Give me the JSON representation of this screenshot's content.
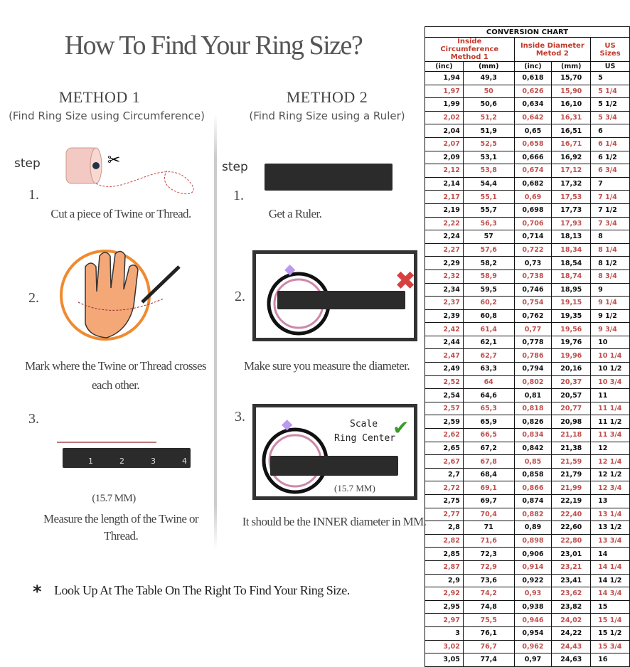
{
  "title": "How To Find Your Ring Size?",
  "method1": {
    "heading": "METHOD 1",
    "subheading": "(Find Ring Size using Circumference)",
    "step_label": "step",
    "steps": [
      {
        "num": "1.",
        "text": "Cut a piece of  Twine or Thread."
      },
      {
        "num": "2.",
        "text": "Mark where the Twine or Thread crosses each other."
      },
      {
        "num": "3.",
        "text": "Measure the length of the Twine or Thread."
      }
    ],
    "measure": "(15.7 MM)"
  },
  "method2": {
    "heading": "METHOD 2",
    "subheading": "(Find Ring Size using a Ruler)",
    "step_label": "step",
    "steps": [
      {
        "num": "1.",
        "text": "Get a Ruler."
      },
      {
        "num": "2.",
        "text": "Make sure you measure the diameter."
      },
      {
        "num": "3.",
        "text": "It should be the INNER diameter in MM."
      }
    ],
    "scale_label": "Scale",
    "center_label": "Ring Center",
    "measure": "(15.7 MM)"
  },
  "ruler_ticks": [
    "1",
    "2",
    "3",
    "4"
  ],
  "footnote": {
    "star": "*",
    "text": "Look Up At The Table On The Right To Find Your Ring Size."
  },
  "chart_data": {
    "type": "table",
    "title": "CONVERSION CHART",
    "group_headers": [
      "Inside Circumference Method 1",
      "Inside Diameter Metod 2",
      "US Sizes"
    ],
    "columns": [
      "(inc)",
      "(mm)",
      "(inc)",
      "(mm)",
      "US"
    ],
    "rows": [
      [
        "1,94",
        "49,3",
        "0,618",
        "15,70",
        "5"
      ],
      [
        "1,97",
        "50",
        "0,626",
        "15,90",
        "5 1/4"
      ],
      [
        "1,99",
        "50,6",
        "0,634",
        "16,10",
        "5 1/2"
      ],
      [
        "2,02",
        "51,2",
        "0,642",
        "16,31",
        "5 3/4"
      ],
      [
        "2,04",
        "51,9",
        "0,65",
        "16,51",
        "6"
      ],
      [
        "2,07",
        "52,5",
        "0,658",
        "16,71",
        "6 1/4"
      ],
      [
        "2,09",
        "53,1",
        "0,666",
        "16,92",
        "6 1/2"
      ],
      [
        "2,12",
        "53,8",
        "0,674",
        "17,12",
        "6 3/4"
      ],
      [
        "2,14",
        "54,4",
        "0,682",
        "17,32",
        "7"
      ],
      [
        "2,17",
        "55,1",
        "0,69",
        "17,53",
        "7 1/4"
      ],
      [
        "2,19",
        "55,7",
        "0,698",
        "17,73",
        "7 1/2"
      ],
      [
        "2,22",
        "56,3",
        "0,706",
        "17,93",
        "7 3/4"
      ],
      [
        "2,24",
        "57",
        "0,714",
        "18,13",
        "8"
      ],
      [
        "2,27",
        "57,6",
        "0,722",
        "18,34",
        "8 1/4"
      ],
      [
        "2,29",
        "58,2",
        "0,73",
        "18,54",
        "8 1/2"
      ],
      [
        "2,32",
        "58,9",
        "0,738",
        "18,74",
        "8 3/4"
      ],
      [
        "2,34",
        "59,5",
        "0,746",
        "18,95",
        "9"
      ],
      [
        "2,37",
        "60,2",
        "0,754",
        "19,15",
        "9 1/4"
      ],
      [
        "2,39",
        "60,8",
        "0,762",
        "19,35",
        "9 1/2"
      ],
      [
        "2,42",
        "61,4",
        "0,77",
        "19,56",
        "9 3/4"
      ],
      [
        "2,44",
        "62,1",
        "0,778",
        "19,76",
        "10"
      ],
      [
        "2,47",
        "62,7",
        "0,786",
        "19,96",
        "10 1/4"
      ],
      [
        "2,49",
        "63,3",
        "0,794",
        "20,16",
        "10 1/2"
      ],
      [
        "2,52",
        "64",
        "0,802",
        "20,37",
        "10 3/4"
      ],
      [
        "2,54",
        "64,6",
        "0,81",
        "20,57",
        "11"
      ],
      [
        "2,57",
        "65,3",
        "0,818",
        "20,77",
        "11 1/4"
      ],
      [
        "2,59",
        "65,9",
        "0,826",
        "20,98",
        "11 1/2"
      ],
      [
        "2,62",
        "66,5",
        "0,834",
        "21,18",
        "11 3/4"
      ],
      [
        "2,65",
        "67,2",
        "0,842",
        "21,38",
        "12"
      ],
      [
        "2,67",
        "67,8",
        "0,85",
        "21,59",
        "12 1/4"
      ],
      [
        "2,7",
        "68,4",
        "0,858",
        "21,79",
        "12 1/2"
      ],
      [
        "2,72",
        "69,1",
        "0,866",
        "21,99",
        "12 3/4"
      ],
      [
        "2,75",
        "69,7",
        "0,874",
        "22,19",
        "13"
      ],
      [
        "2,77",
        "70,4",
        "0,882",
        "22,40",
        "13 1/4"
      ],
      [
        "2,8",
        "71",
        "0,89",
        "22,60",
        "13 1/2"
      ],
      [
        "2,82",
        "71,6",
        "0,898",
        "22,80",
        "13 3/4"
      ],
      [
        "2,85",
        "72,3",
        "0,906",
        "23,01",
        "14"
      ],
      [
        "2,87",
        "72,9",
        "0,914",
        "23,21",
        "14 1/4"
      ],
      [
        "2,9",
        "73,6",
        "0,922",
        "23,41",
        "14 1/2"
      ],
      [
        "2,92",
        "74,2",
        "0,93",
        "23,62",
        "14 3/4"
      ],
      [
        "2,95",
        "74,8",
        "0,938",
        "23,82",
        "15"
      ],
      [
        "2,97",
        "75,5",
        "0,946",
        "24,02",
        "15 1/4"
      ],
      [
        "3",
        "76,1",
        "0,954",
        "24,22",
        "15 1/2"
      ],
      [
        "3,02",
        "76,7",
        "0,962",
        "24,43",
        "15 3/4"
      ],
      [
        "3,05",
        "77,4",
        "0,97",
        "24,63",
        "16"
      ]
    ]
  },
  "colors": {
    "highlight_row": "#c0504d",
    "header_red": "#c0392b",
    "check": "#3a9a2a",
    "cross": "#d84040",
    "hand": "#f0a070"
  }
}
